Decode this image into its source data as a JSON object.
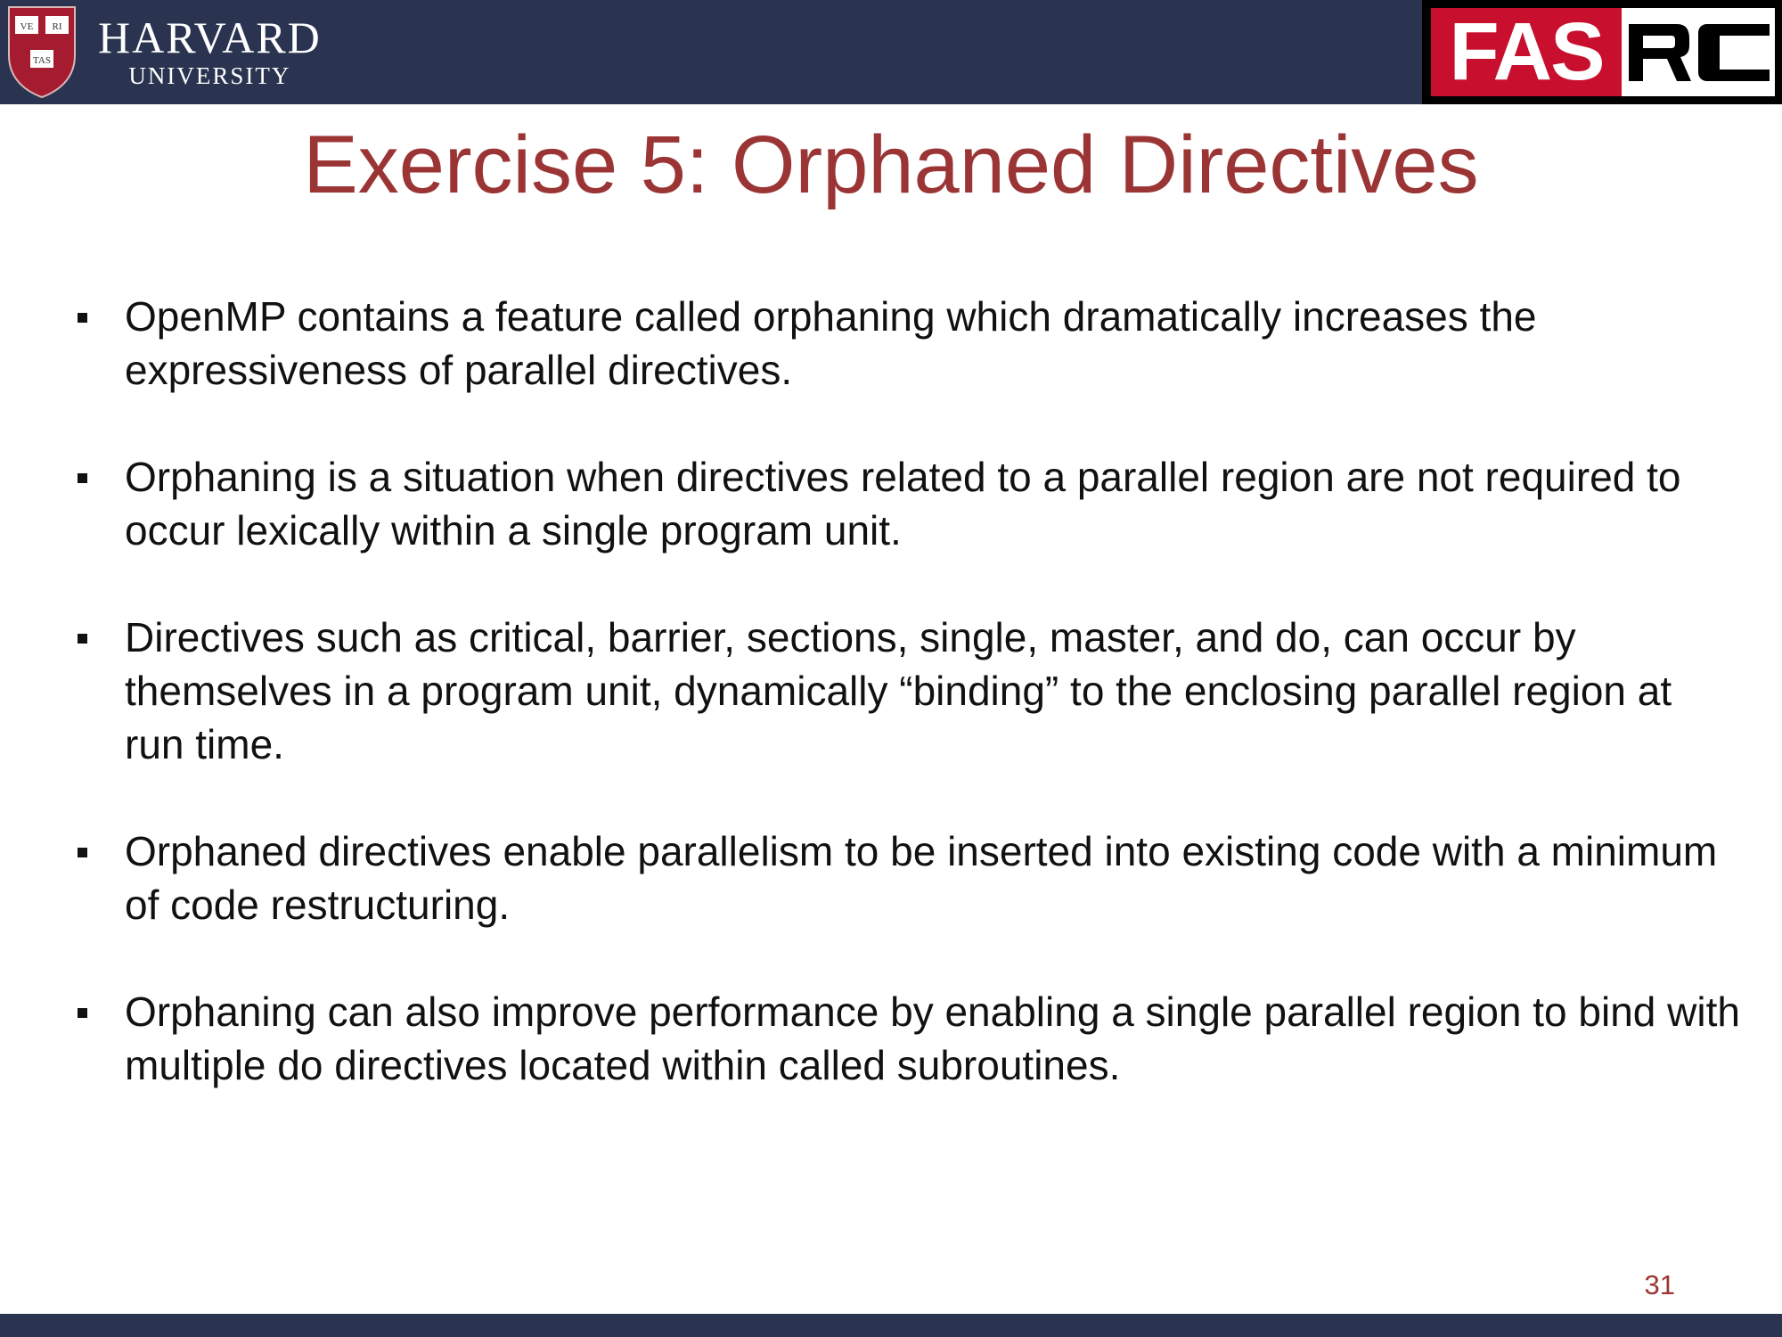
{
  "header": {
    "harvard": {
      "wordmark": "HARVARD",
      "subtitle": "UNIVERSITY",
      "shield_text": [
        "VE",
        "RI",
        "TAS"
      ]
    },
    "fasrc": {
      "fas": "FAS",
      "rc": "RC"
    }
  },
  "slide": {
    "title": "Exercise 5: Orphaned Directives",
    "bullets": [
      {
        "text": "OpenMP contains a feature called orphaning which dramatically increases the expressiveness of parallel directives."
      },
      {
        "text": "Orphaning is a situation when directives related to a parallel region are not required to occur lexically within a single program unit."
      },
      {
        "text": "Directives such as critical, barrier, sections, single, master, and do, can occur by themselves in a program unit, dynamically “binding” to the enclosing parallel region at run time."
      },
      {
        "text": "Orphaned directives enable parallelism to be inserted into existing code with a minimum of code restructuring."
      },
      {
        "text": "Orphaning can also improve performance by enabling a single parallel region to bind with multiple do directives located within called subroutines."
      }
    ],
    "page_number": "31"
  },
  "colors": {
    "header_bar": "#2a3451",
    "title": "#9b3535",
    "fas_red": "#c8102e"
  }
}
